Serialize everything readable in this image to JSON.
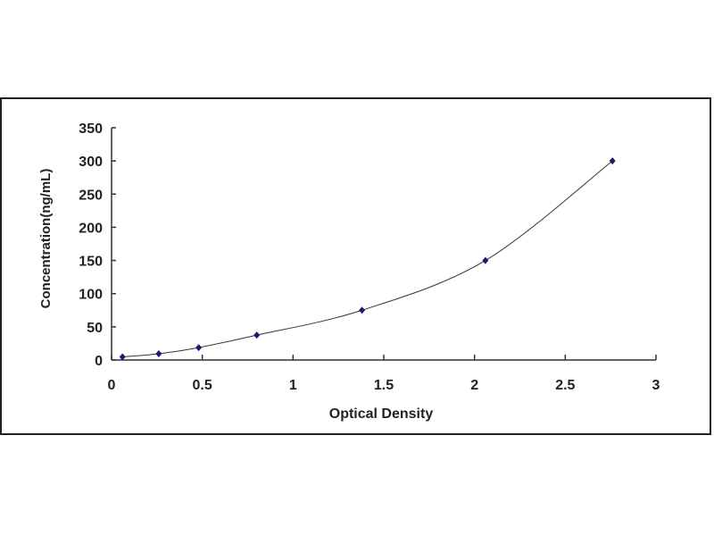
{
  "chart_data": {
    "type": "scatter",
    "title": "",
    "xlabel": "Optical Density",
    "ylabel": "Concentration(ng/mL)",
    "xlim": [
      0,
      3
    ],
    "ylim": [
      0,
      350
    ],
    "xticks": [
      "0",
      "0.5",
      "1",
      "1.5",
      "2",
      "2.5",
      "3"
    ],
    "yticks": [
      "0",
      "50",
      "100",
      "150",
      "200",
      "250",
      "300",
      "350"
    ],
    "grid": false,
    "legend": "none",
    "trendline": "smooth curve",
    "colors": {
      "points": "#1a1a6e",
      "line": "#333333"
    },
    "points": [
      {
        "x": 0.06,
        "y": 4.69
      },
      {
        "x": 0.26,
        "y": 9.38
      },
      {
        "x": 0.48,
        "y": 18.75
      },
      {
        "x": 0.8,
        "y": 37.5
      },
      {
        "x": 1.38,
        "y": 75
      },
      {
        "x": 2.06,
        "y": 150
      },
      {
        "x": 2.76,
        "y": 300
      }
    ]
  }
}
